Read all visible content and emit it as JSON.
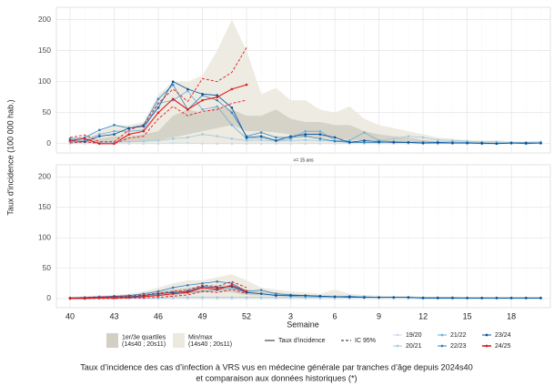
{
  "x_label": "Semaine",
  "y_label": "Taux d'incidence (100 000 hab.)",
  "caption": [
    "Taux d’incidence des cas d’infection à VRS vus en médecine générale par tranches d’âge depuis 2024s40",
    "et comparaison aux données historiques (*)"
  ],
  "line_label": "Taux d'incidence",
  "chart_data": [
    {
      "type": "line",
      "categories": [
        "40",
        null,
        null,
        "43",
        null,
        null,
        "46",
        null,
        null,
        "49",
        null,
        null,
        "52",
        null,
        null,
        "3",
        null,
        null,
        "6",
        null,
        null,
        "9",
        null,
        null,
        "12",
        null,
        null,
        "15",
        null,
        null,
        "18",
        null,
        null
      ],
      "ylim": [
        -15,
        220
      ],
      "yticks": [
        0,
        50,
        100,
        150,
        200
      ],
      "grid": true,
      "bands": [
        {
          "name": "Min/max\n(14s40 ; 20s11)",
          "color": "#ece9df",
          "upper": [
            8,
            10,
            20,
            30,
            30,
            35,
            80,
            100,
            100,
            110,
            150,
            200,
            150,
            80,
            90,
            70,
            70,
            55,
            50,
            60,
            40,
            30,
            25,
            20,
            15,
            10,
            8,
            6,
            5,
            5,
            4,
            4,
            4
          ],
          "lower": [
            0,
            0,
            0,
            0,
            0,
            0,
            0,
            0,
            0,
            0,
            0,
            0,
            0,
            0,
            0,
            0,
            0,
            0,
            0,
            0,
            0,
            0,
            0,
            0,
            0,
            0,
            0,
            0,
            0,
            0,
            0,
            0,
            0
          ]
        },
        {
          "name": "1er/3e quartiles\n(14s40 ; 20s11)",
          "color": "#d2cfc4",
          "upper": [
            4,
            5,
            8,
            12,
            12,
            15,
            20,
            45,
            55,
            50,
            60,
            55,
            45,
            45,
            55,
            40,
            35,
            35,
            30,
            30,
            20,
            15,
            12,
            10,
            6,
            4,
            3,
            2,
            2,
            2,
            2,
            1,
            1
          ],
          "lower": [
            1,
            1,
            2,
            3,
            3,
            4,
            6,
            10,
            15,
            20,
            25,
            30,
            20,
            20,
            18,
            15,
            12,
            10,
            8,
            6,
            5,
            4,
            3,
            2,
            1,
            1,
            1,
            0,
            0,
            0,
            0,
            0,
            0
          ]
        }
      ],
      "series": [
        {
          "name": "19/20",
          "color": "#c6dbef",
          "values": [
            0,
            0,
            0,
            0,
            0,
            0,
            0,
            1,
            1,
            0,
            0,
            0,
            0,
            0,
            0,
            0,
            0,
            0,
            0,
            0,
            0,
            0,
            0,
            0,
            0,
            0,
            0,
            0,
            0,
            0,
            0,
            0,
            0
          ]
        },
        {
          "name": "20/21",
          "color": "#9ecae1",
          "values": [
            2,
            3,
            2,
            2,
            3,
            4,
            5,
            8,
            10,
            15,
            12,
            8,
            5,
            6,
            4,
            5,
            6,
            5,
            4,
            4,
            3,
            5,
            8,
            12,
            10,
            6,
            5,
            4,
            3,
            3,
            2,
            2,
            3
          ]
        },
        {
          "name": "21/22",
          "color": "#6baed6",
          "values": [
            3,
            5,
            15,
            20,
            20,
            22,
            65,
            70,
            85,
            55,
            60,
            30,
            8,
            10,
            5,
            8,
            20,
            20,
            5,
            5,
            18,
            5,
            3,
            2,
            3,
            2,
            3,
            2,
            1,
            1,
            1,
            1,
            1
          ]
        },
        {
          "name": "22/23",
          "color": "#3182bd",
          "values": [
            8,
            10,
            22,
            30,
            25,
            30,
            72,
            95,
            55,
            78,
            70,
            50,
            12,
            18,
            10,
            10,
            12,
            8,
            4,
            2,
            2,
            2,
            3,
            2,
            1,
            1,
            1,
            1,
            0,
            0,
            1,
            0,
            1
          ]
        },
        {
          "name": "23/24",
          "color": "#08519c",
          "values": [
            5,
            3,
            12,
            15,
            25,
            28,
            58,
            100,
            88,
            80,
            78,
            58,
            10,
            12,
            5,
            12,
            15,
            15,
            10,
            2,
            5,
            3,
            2,
            2,
            1,
            2,
            1,
            1,
            1,
            0,
            1,
            1,
            1
          ]
        },
        {
          "name": "24/25",
          "color": "#e41a1c",
          "values": [
            5,
            8,
            0,
            0,
            15,
            20,
            50,
            72,
            55,
            70,
            75,
            88,
            95,
            null,
            null,
            null,
            null,
            null,
            null,
            null,
            null,
            null,
            null,
            null,
            null,
            null,
            null,
            null,
            null,
            null,
            null,
            null,
            null
          ],
          "ci": {
            "name": "IC 95%",
            "lower": [
              1,
              3,
              0,
              0,
              9,
              12,
              40,
              60,
              45,
              52,
              55,
              65,
              70,
              null,
              null,
              null,
              null,
              null,
              null,
              null,
              null,
              null,
              null,
              null,
              null,
              null,
              null,
              null,
              null,
              null,
              null,
              null,
              null
            ],
            "upper": [
              10,
              14,
              3,
              3,
              22,
              30,
              65,
              88,
              68,
              105,
              100,
              115,
              155,
              null,
              null,
              null,
              null,
              null,
              null,
              null,
              null,
              null,
              null,
              null,
              null,
              null,
              null,
              null,
              null,
              null,
              null,
              null,
              null
            ]
          }
        }
      ]
    },
    {
      "type": "line",
      "title": ">= 15 ans",
      "categories": [
        "40",
        null,
        null,
        "43",
        null,
        null,
        "46",
        null,
        null,
        "49",
        null,
        null,
        "52",
        null,
        null,
        "3",
        null,
        null,
        "6",
        null,
        null,
        "9",
        null,
        null,
        "12",
        null,
        null,
        "15",
        null,
        null,
        "18",
        null,
        null
      ],
      "ylim": [
        -15,
        220
      ],
      "yticks": [
        0,
        50,
        100,
        150,
        200
      ],
      "grid": true,
      "bands": [
        {
          "name": "Min/max\n(14s40 ; 20s11)",
          "color": "#ece9df",
          "upper": [
            3,
            4,
            5,
            6,
            8,
            12,
            18,
            25,
            30,
            30,
            35,
            40,
            30,
            18,
            15,
            12,
            10,
            8,
            15,
            8,
            6,
            5,
            4,
            4,
            3,
            3,
            3,
            2,
            2,
            2,
            2,
            2,
            2
          ],
          "lower": [
            0,
            0,
            0,
            0,
            0,
            0,
            0,
            0,
            0,
            0,
            0,
            0,
            0,
            0,
            0,
            0,
            0,
            0,
            0,
            0,
            0,
            0,
            0,
            0,
            0,
            0,
            0,
            0,
            0,
            0,
            0,
            0,
            0
          ]
        },
        {
          "name": "1er/3e quartiles\n(14s40 ; 20s11)",
          "color": "#d2cfc4",
          "upper": [
            2,
            2,
            3,
            4,
            5,
            8,
            12,
            15,
            18,
            20,
            22,
            22,
            15,
            12,
            10,
            8,
            6,
            5,
            5,
            4,
            3,
            3,
            2,
            2,
            2,
            2,
            1,
            1,
            1,
            1,
            1,
            1,
            1
          ],
          "lower": [
            0,
            1,
            1,
            1,
            2,
            3,
            4,
            5,
            8,
            10,
            12,
            10,
            6,
            5,
            4,
            3,
            2,
            2,
            2,
            2,
            1,
            1,
            1,
            1,
            1,
            0,
            0,
            0,
            0,
            0,
            0,
            0,
            0
          ]
        }
      ],
      "series": [
        {
          "name": "19/20",
          "color": "#c6dbef",
          "values": [
            0,
            0,
            0,
            0,
            0,
            0,
            0,
            0,
            0,
            0,
            0,
            0,
            0,
            0,
            0,
            0,
            0,
            0,
            0,
            0,
            0,
            0,
            0,
            0,
            0,
            0,
            0,
            0,
            0,
            0,
            0,
            0,
            0
          ]
        },
        {
          "name": "20/21",
          "color": "#9ecae1",
          "values": [
            0,
            0,
            1,
            1,
            1,
            1,
            1,
            2,
            2,
            2,
            2,
            2,
            2,
            2,
            2,
            2,
            2,
            2,
            2,
            3,
            3,
            2,
            2,
            2,
            2,
            2,
            2,
            1,
            1,
            1,
            1,
            1,
            1
          ]
        },
        {
          "name": "21/22",
          "color": "#6baed6",
          "values": [
            1,
            1,
            2,
            2,
            3,
            4,
            6,
            8,
            10,
            12,
            14,
            18,
            10,
            8,
            6,
            4,
            3,
            3,
            3,
            4,
            3,
            2,
            2,
            2,
            1,
            1,
            1,
            1,
            1,
            1,
            1,
            1,
            1
          ]
        },
        {
          "name": "22/23",
          "color": "#3182bd",
          "values": [
            1,
            2,
            3,
            4,
            5,
            8,
            12,
            18,
            22,
            25,
            28,
            25,
            12,
            14,
            8,
            6,
            5,
            4,
            3,
            2,
            2,
            2,
            2,
            2,
            1,
            1,
            1,
            1,
            1,
            1,
            1,
            1,
            1
          ]
        },
        {
          "name": "23/24",
          "color": "#08519c",
          "values": [
            1,
            1,
            2,
            3,
            3,
            5,
            8,
            10,
            12,
            20,
            18,
            20,
            10,
            8,
            5,
            5,
            5,
            4,
            3,
            3,
            2,
            2,
            2,
            2,
            1,
            1,
            1,
            1,
            1,
            1,
            1,
            1,
            1
          ]
        },
        {
          "name": "24/25",
          "color": "#e41a1c",
          "values": [
            0,
            0,
            1,
            1,
            2,
            3,
            5,
            8,
            10,
            18,
            15,
            22,
            12,
            null,
            null,
            null,
            null,
            null,
            null,
            null,
            null,
            null,
            null,
            null,
            null,
            null,
            null,
            null,
            null,
            null,
            null,
            null,
            null
          ],
          "ci": {
            "name": "IC 95%",
            "lower": [
              0,
              0,
              0,
              0,
              1,
              1,
              2,
              4,
              6,
              12,
              10,
              15,
              8,
              null,
              null,
              null,
              null,
              null,
              null,
              null,
              null,
              null,
              null,
              null,
              null,
              null,
              null,
              null,
              null,
              null,
              null,
              null,
              null
            ],
            "upper": [
              1,
              2,
              3,
              3,
              5,
              6,
              9,
              12,
              14,
              22,
              20,
              28,
              18,
              null,
              null,
              null,
              null,
              null,
              null,
              null,
              null,
              null,
              null,
              null,
              null,
              null,
              null,
              null,
              null,
              null,
              null,
              null,
              null
            ]
          }
        }
      ]
    }
  ]
}
